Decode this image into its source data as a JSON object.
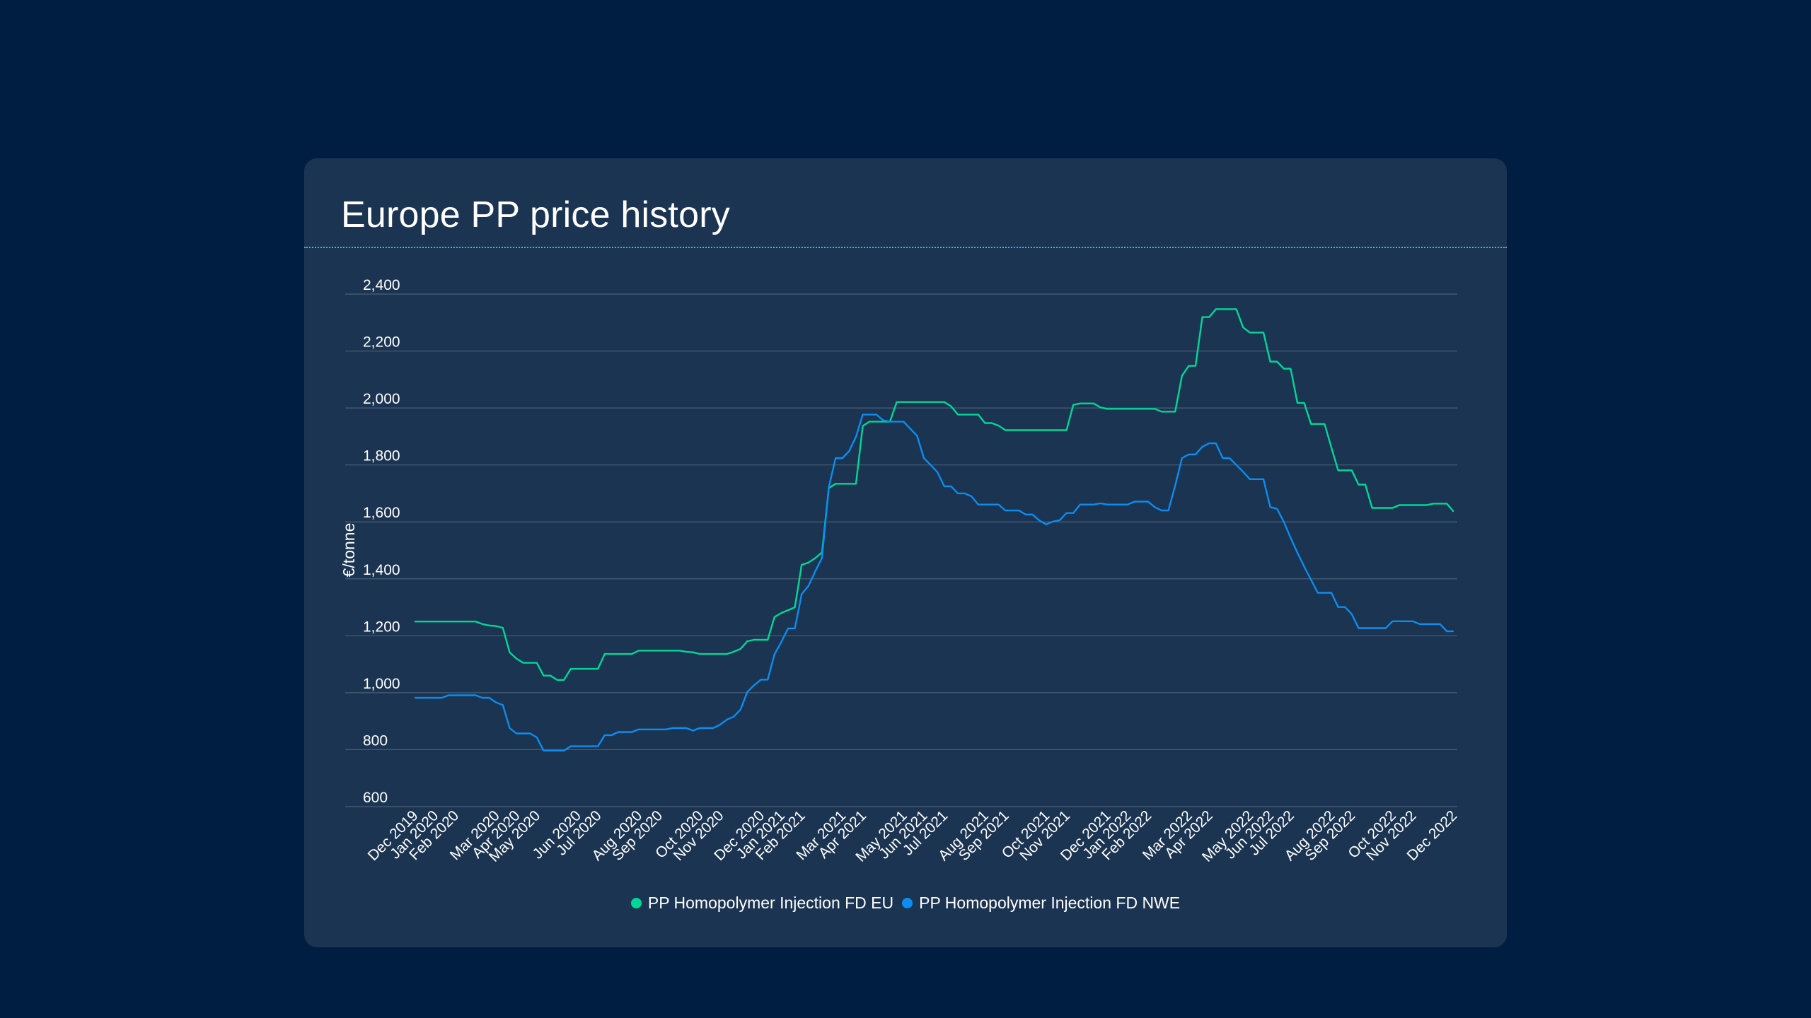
{
  "page": {
    "background_color": "#001e41",
    "card_color": "#1b3452",
    "rule_color": "#22c4ee",
    "grid_color": "#4a5f78"
  },
  "legend": {
    "items": [
      {
        "label": "PP Homopolymer Injection FD EU",
        "color": "#00d897"
      },
      {
        "label": "PP Homopolymer Injection FD NWE",
        "color": "#0a8ef0"
      }
    ]
  },
  "chart_data": {
    "type": "line",
    "title": "Europe PP price history",
    "xlabel": "",
    "ylabel": "€/tonne",
    "ylim": [
      600,
      2400
    ],
    "yticks": [
      600,
      800,
      1000,
      1200,
      1400,
      1600,
      1800,
      2000,
      2200,
      2400
    ],
    "ytick_labels": [
      "600",
      "800",
      "1,000",
      "1,200",
      "1,400",
      "1,600",
      "1,800",
      "2,000",
      "2,200",
      "2,400"
    ],
    "grid": true,
    "legend_position": "bottom-center",
    "x_frequency": "weekly",
    "x_points": 154,
    "xticks": [
      {
        "index": 0,
        "label": "Dec 2019"
      },
      {
        "index": 3,
        "label": "Jan 2020"
      },
      {
        "index": 6,
        "label": "Feb 2020"
      },
      {
        "index": 12,
        "label": "Mar 2020"
      },
      {
        "index": 15,
        "label": "Apr 2020"
      },
      {
        "index": 18,
        "label": "May 2020"
      },
      {
        "index": 24,
        "label": "Jun 2020"
      },
      {
        "index": 27,
        "label": "Jul 2020"
      },
      {
        "index": 33,
        "label": "Aug 2020"
      },
      {
        "index": 36,
        "label": "Sep 2020"
      },
      {
        "index": 42,
        "label": "Oct 2020"
      },
      {
        "index": 45,
        "label": "Nov 2020"
      },
      {
        "index": 51,
        "label": "Dec 2020"
      },
      {
        "index": 54,
        "label": "Jan 2021"
      },
      {
        "index": 57,
        "label": "Feb 2021"
      },
      {
        "index": 63,
        "label": "Mar 2021"
      },
      {
        "index": 66,
        "label": "Apr 2021"
      },
      {
        "index": 72,
        "label": "May 2021"
      },
      {
        "index": 75,
        "label": "Jun 2021"
      },
      {
        "index": 78,
        "label": "Jul 2021"
      },
      {
        "index": 84,
        "label": "Aug 2021"
      },
      {
        "index": 87,
        "label": "Sep 2021"
      },
      {
        "index": 93,
        "label": "Oct 2021"
      },
      {
        "index": 96,
        "label": "Nov 2021"
      },
      {
        "index": 102,
        "label": "Dec 2021"
      },
      {
        "index": 105,
        "label": "Jan 2022"
      },
      {
        "index": 108,
        "label": "Feb 2022"
      },
      {
        "index": 114,
        "label": "Mar 2022"
      },
      {
        "index": 117,
        "label": "Apr 2022"
      },
      {
        "index": 123,
        "label": "May 2022"
      },
      {
        "index": 126,
        "label": "Jun 2022"
      },
      {
        "index": 129,
        "label": "Jul 2022"
      },
      {
        "index": 135,
        "label": "Aug 2022"
      },
      {
        "index": 138,
        "label": "Sep 2022"
      },
      {
        "index": 144,
        "label": "Oct 2022"
      },
      {
        "index": 147,
        "label": "Nov 2022"
      },
      {
        "index": 153,
        "label": "Dec 2022"
      }
    ],
    "series": [
      {
        "name": "PP Homopolymer Injection FD EU",
        "color": "#00d897",
        "values": [
          1250,
          1250,
          1250,
          1250,
          1250,
          1250,
          1250,
          1250,
          1250,
          1250,
          1241,
          1236,
          1234,
          1228,
          1142,
          1120,
          1105,
          1105,
          1105,
          1060,
          1060,
          1045,
          1045,
          1084,
          1084,
          1084,
          1084,
          1084,
          1136,
          1136,
          1136,
          1136,
          1136,
          1148,
          1148,
          1148,
          1148,
          1148,
          1148,
          1148,
          1144,
          1142,
          1136,
          1136,
          1136,
          1136,
          1136,
          1144,
          1154,
          1181,
          1186,
          1186,
          1186,
          1266,
          1280,
          1290,
          1300,
          1449,
          1457,
          1473,
          1493,
          1719,
          1734,
          1734,
          1734,
          1734,
          1937,
          1952,
          1952,
          1952,
          1952,
          2021,
          2021,
          2021,
          2021,
          2021,
          2021,
          2021,
          2021,
          2006,
          1977,
          1977,
          1977,
          1977,
          1947,
          1947,
          1938,
          1922,
          1922,
          1922,
          1922,
          1922,
          1922,
          1922,
          1922,
          1922,
          1922,
          2011,
          2016,
          2016,
          2016,
          2002,
          1997,
          1997,
          1997,
          1997,
          1997,
          1997,
          1997,
          1997,
          1987,
          1987,
          1987,
          2113,
          2148,
          2148,
          2319,
          2319,
          2347,
          2347,
          2347,
          2347,
          2283,
          2265,
          2265,
          2265,
          2163,
          2163,
          2138,
          2138,
          2018,
          2018,
          1944,
          1944,
          1944,
          1861,
          1781,
          1781,
          1781,
          1731,
          1731,
          1649,
          1649,
          1649,
          1649,
          1659,
          1659,
          1659,
          1659,
          1659,
          1664,
          1664,
          1664,
          1636
        ]
      },
      {
        "name": "PP Homopolymer Injection FD NWE",
        "color": "#0a8ef0",
        "values": [
          982,
          982,
          982,
          982,
          982,
          991,
          991,
          991,
          991,
          991,
          982,
          982,
          966,
          957,
          876,
          857,
          857,
          857,
          843,
          797,
          797,
          797,
          797,
          812,
          812,
          812,
          812,
          812,
          851,
          851,
          862,
          862,
          862,
          871,
          871,
          871,
          871,
          871,
          876,
          876,
          876,
          867,
          876,
          876,
          876,
          888,
          906,
          916,
          941,
          1003,
          1026,
          1046,
          1046,
          1135,
          1178,
          1226,
          1226,
          1346,
          1375,
          1426,
          1474,
          1722,
          1824,
          1824,
          1849,
          1899,
          1977,
          1977,
          1977,
          1957,
          1952,
          1952,
          1952,
          1927,
          1902,
          1824,
          1800,
          1774,
          1725,
          1725,
          1700,
          1700,
          1690,
          1661,
          1661,
          1661,
          1661,
          1640,
          1640,
          1640,
          1626,
          1626,
          1605,
          1591,
          1601,
          1606,
          1631,
          1631,
          1661,
          1661,
          1661,
          1665,
          1661,
          1661,
          1661,
          1661,
          1671,
          1671,
          1671,
          1652,
          1640,
          1640,
          1727,
          1824,
          1837,
          1837,
          1864,
          1876,
          1876,
          1824,
          1824,
          1800,
          1776,
          1750,
          1750,
          1750,
          1652,
          1646,
          1600,
          1544,
          1492,
          1443,
          1397,
          1351,
          1351,
          1351,
          1301,
          1301,
          1276,
          1227,
          1227,
          1227,
          1227,
          1227,
          1251,
          1251,
          1251,
          1251,
          1241,
          1241,
          1241,
          1241,
          1216,
          1216
        ]
      }
    ]
  }
}
